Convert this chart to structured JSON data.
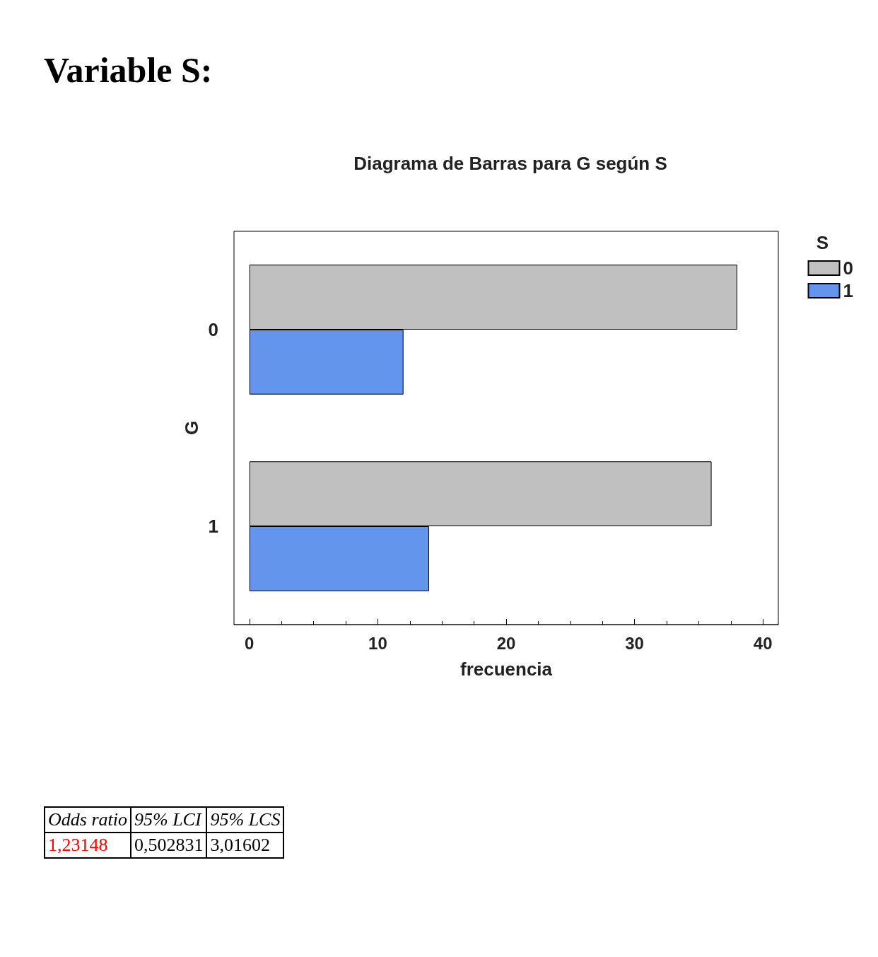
{
  "chart_data": {
    "type": "bar",
    "orientation": "horizontal",
    "title": "Diagrama de Barras para G según S",
    "xlabel": "frecuencia",
    "ylabel": "G",
    "legend_title": "S",
    "categories": [
      "0",
      "1"
    ],
    "series": [
      {
        "name": "0",
        "color": "#c0c0c0",
        "values": [
          38,
          36
        ]
      },
      {
        "name": "1",
        "color": "#6495ed",
        "values": [
          12,
          14
        ]
      }
    ],
    "xlim": [
      -1.2,
      41.2
    ],
    "xticks": [
      0,
      10,
      20,
      30,
      40
    ],
    "grid": false,
    "legend": "top right",
    "annotations": [
      "Variable S:",
      "Odds ratio",
      "95% LCI",
      "95% LCS",
      "1,23148",
      "0,502831",
      "3,01602"
    ]
  }
}
